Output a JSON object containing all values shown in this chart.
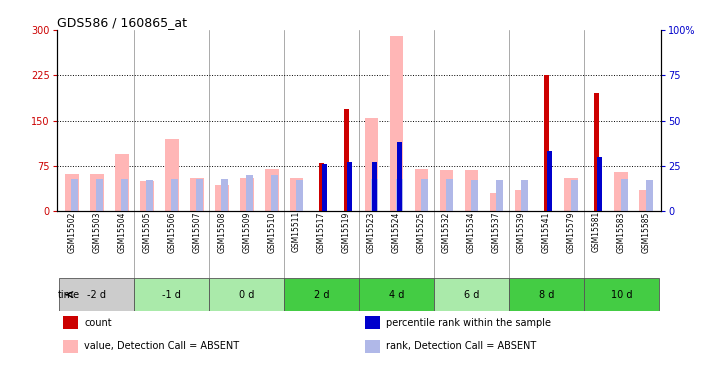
{
  "title": "GDS586 / 160865_at",
  "samples": [
    "GSM15502",
    "GSM15503",
    "GSM15504",
    "GSM15505",
    "GSM15506",
    "GSM15507",
    "GSM15508",
    "GSM15509",
    "GSM15510",
    "GSM15511",
    "GSM15517",
    "GSM15519",
    "GSM15523",
    "GSM15524",
    "GSM15525",
    "GSM15532",
    "GSM15534",
    "GSM15537",
    "GSM15539",
    "GSM15541",
    "GSM15579",
    "GSM15581",
    "GSM15583",
    "GSM15585"
  ],
  "time_groups": [
    {
      "label": "-2 d",
      "indices": [
        0,
        1,
        2
      ],
      "color": "#d0d0d0"
    },
    {
      "label": "-1 d",
      "indices": [
        3,
        4,
        5
      ],
      "color": "#bbf0bb"
    },
    {
      "label": "0 d",
      "indices": [
        6,
        7,
        8
      ],
      "color": "#bbf0bb"
    },
    {
      "label": "2 d",
      "indices": [
        9,
        10,
        11
      ],
      "color": "#55dd55"
    },
    {
      "label": "4 d",
      "indices": [
        12,
        13,
        14
      ],
      "color": "#55dd55"
    },
    {
      "label": "6 d",
      "indices": [
        15,
        16,
        17
      ],
      "color": "#bbf0bb"
    },
    {
      "label": "8 d",
      "indices": [
        18,
        19,
        20
      ],
      "color": "#55dd55"
    },
    {
      "label": "10 d",
      "indices": [
        21,
        22,
        23
      ],
      "color": "#55dd55"
    }
  ],
  "count_values": [
    0,
    0,
    0,
    0,
    0,
    0,
    0,
    0,
    0,
    0,
    80,
    170,
    0,
    0,
    0,
    0,
    0,
    0,
    0,
    225,
    0,
    195,
    0,
    0
  ],
  "rank_values": [
    0,
    0,
    0,
    0,
    0,
    0,
    0,
    0,
    0,
    0,
    26,
    27,
    27,
    38,
    0,
    0,
    0,
    0,
    0,
    33,
    0,
    30,
    0,
    0
  ],
  "absent_value": [
    62,
    62,
    95,
    50,
    120,
    55,
    43,
    55,
    70,
    55,
    0,
    0,
    155,
    290,
    70,
    68,
    68,
    30,
    35,
    0,
    55,
    0,
    65,
    35
  ],
  "absent_rank": [
    18,
    18,
    18,
    17,
    18,
    18,
    18,
    20,
    20,
    17,
    0,
    0,
    18,
    18,
    18,
    18,
    17,
    17,
    17,
    0,
    17,
    0,
    18,
    17
  ],
  "ylim_left": [
    0,
    300
  ],
  "ylim_right": [
    0,
    100
  ],
  "yticks_left": [
    0,
    75,
    150,
    225,
    300
  ],
  "yticks_right": [
    0,
    25,
    50,
    75,
    100
  ],
  "color_count": "#cc0000",
  "color_rank": "#0000cc",
  "color_absent_value": "#ffb6b6",
  "color_absent_rank": "#b0b8e8"
}
